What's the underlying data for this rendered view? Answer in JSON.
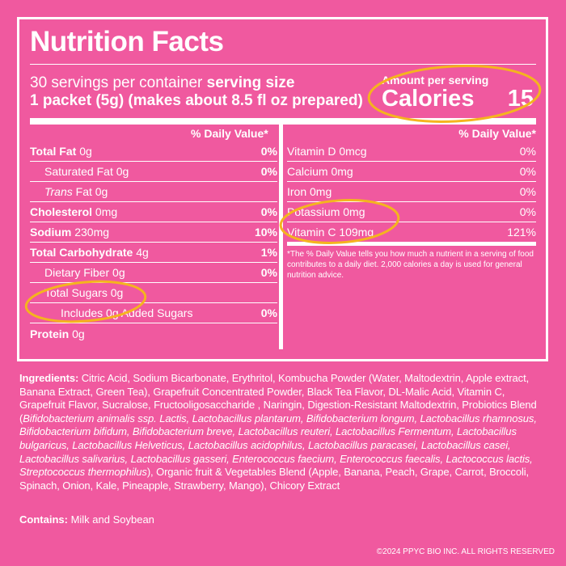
{
  "label": {
    "title": "Nutrition Facts",
    "servings_per_container": "30 servings per container",
    "serving_size_label": "serving size",
    "serving_size_value": "1 packet (5g) (makes about 8.5 fl oz prepared)",
    "amount_per_serving": "Amount per serving",
    "calories_label": "Calories",
    "calories_value": "15",
    "dv_header": "% Daily Value*"
  },
  "left_rows": [
    {
      "name": "Total Fat",
      "amount": "0g",
      "dv": "0%"
    },
    {
      "name": "Saturated Fat",
      "amount": "0g",
      "dv": "0%"
    },
    {
      "name": "Trans",
      "amount": "Fat 0g",
      "dv": ""
    },
    {
      "name": "Cholesterol",
      "amount": "0mg",
      "dv": "0%"
    },
    {
      "name": "Sodium",
      "amount": "230mg",
      "dv": "10%"
    },
    {
      "name": "Total Carbohydrate",
      "amount": "4g",
      "dv": "1%"
    },
    {
      "name": "Dietary Fiber",
      "amount": "0g",
      "dv": "0%"
    },
    {
      "name": "Total Sugars",
      "amount": "0g",
      "dv": ""
    },
    {
      "name": "Includes 0g Added Sugars",
      "amount": "",
      "dv": "0%"
    },
    {
      "name": "Protein",
      "amount": "0g",
      "dv": ""
    }
  ],
  "right_rows": [
    {
      "name": "Vitamin D",
      "amount": "0mcg",
      "dv": "0%"
    },
    {
      "name": "Calcium",
      "amount": "0mg",
      "dv": "0%"
    },
    {
      "name": "Iron",
      "amount": "0mg",
      "dv": "0%"
    },
    {
      "name": "Potassium",
      "amount": "0mg",
      "dv": "0%"
    },
    {
      "name": "Vitamin C",
      "amount": "109mg",
      "dv": "121%"
    }
  ],
  "footnote": "*The % Daily Value tells you how much a nutrient in a serving of food contributes to a daily diet. 2,000 calories a day is used for general nutrition advice.",
  "ingredients": {
    "label": "Ingredients:",
    "text_a": " Citric Acid, Sodium Bicarbonate, Erythritol, Kombucha Powder (Water, Maltodextrin, Apple extract, Banana Extract, Green Tea), Grapefruit Concentrated Powder, Black Tea Flavor, DL-Malic Acid, Vitamin C, Grapefruit Flavor, Sucralose, Fructooligosaccharide , Naringin, Digestion-Resistant Maltodextrin, Probiotics Blend (",
    "text_italic": "Bifidobacterium animalis ssp. Lactis, Lactobacillus plantarum, Bifidobacterium longum, Lactobacillus rhamnosus, Bifidobacterium bifidum, Bifidobacterium breve, Lactobacillus reuteri, Lactobacillus Fermentum, Lactobacillus bulgaricus, Lactobacillus Helveticus, Lactobacillus acidophilus, Lactobacillus paracasei, Lactobacillus casei, Lactobacillus salivarius, Lactobacillus gasseri, Enterococcus faecium, Enterococcus faecalis, Lactococcus lactis, Streptococcus thermophilus",
    "text_b": "), Organic fruit & Vegetables Blend (Apple, Banana, Peach, Grape, Carrot, Broccoli, Spinach, Onion, Kale, Pineapple, Strawberry, Mango), Chicory Extract"
  },
  "contains": {
    "label": "Contains:",
    "text": " Milk and Soybean"
  },
  "copyright": "©2024 PPYC BIO INC. ALL RIGHTS RESERVED",
  "colors": {
    "background": "#f0599f",
    "text": "#ffffff",
    "highlight": "#f5b41e"
  }
}
